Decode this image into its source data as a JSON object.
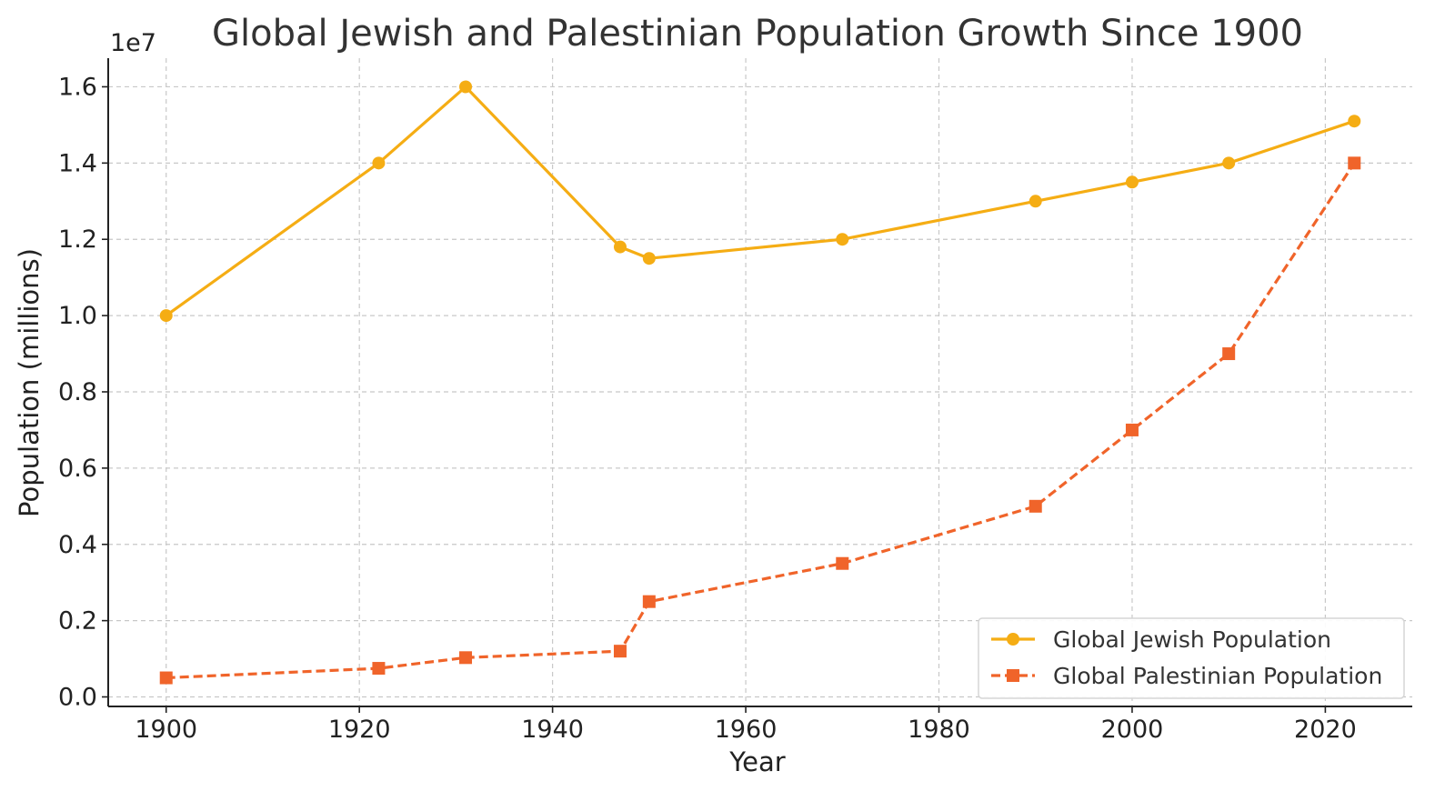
{
  "chart_data": {
    "type": "line",
    "title": "Global Jewish and Palestinian Population Growth Since 1900",
    "xlabel": "Year",
    "ylabel": "Population (millions)",
    "y_offset_label": "1e7",
    "xlim": [
      1894,
      2029
    ],
    "ylim": [
      -250000,
      16750000
    ],
    "x_ticks": [
      1900,
      1920,
      1940,
      1960,
      1980,
      2000,
      2020
    ],
    "x_tick_labels": [
      "1900",
      "1920",
      "1940",
      "1960",
      "1980",
      "2000",
      "2020"
    ],
    "y_ticks": [
      0,
      2000000,
      4000000,
      6000000,
      8000000,
      10000000,
      12000000,
      14000000,
      16000000
    ],
    "y_tick_labels": [
      "0.0",
      "0.2",
      "0.4",
      "0.6",
      "0.8",
      "1.0",
      "1.2",
      "1.4",
      "1.6"
    ],
    "grid": true,
    "legend_position": "bottom-right",
    "series": [
      {
        "name": "Global Jewish Population",
        "color": "#f5ad14",
        "line_style": "solid",
        "marker": "circle",
        "x": [
          1900,
          1922,
          1931,
          1947,
          1950,
          1970,
          1990,
          2000,
          2010,
          2023
        ],
        "y": [
          10000000,
          14000000,
          16000000,
          11800000,
          11500000,
          12000000,
          13000000,
          13500000,
          14000000,
          15100000
        ]
      },
      {
        "name": "Global Palestinian Population",
        "color": "#f0642a",
        "line_style": "dashed",
        "marker": "square",
        "x": [
          1900,
          1922,
          1931,
          1947,
          1950,
          1970,
          1990,
          2000,
          2010,
          2023
        ],
        "y": [
          500000,
          750000,
          1030000,
          1200000,
          2500000,
          3500000,
          5000000,
          7000000,
          9000000,
          14000000
        ]
      }
    ]
  }
}
